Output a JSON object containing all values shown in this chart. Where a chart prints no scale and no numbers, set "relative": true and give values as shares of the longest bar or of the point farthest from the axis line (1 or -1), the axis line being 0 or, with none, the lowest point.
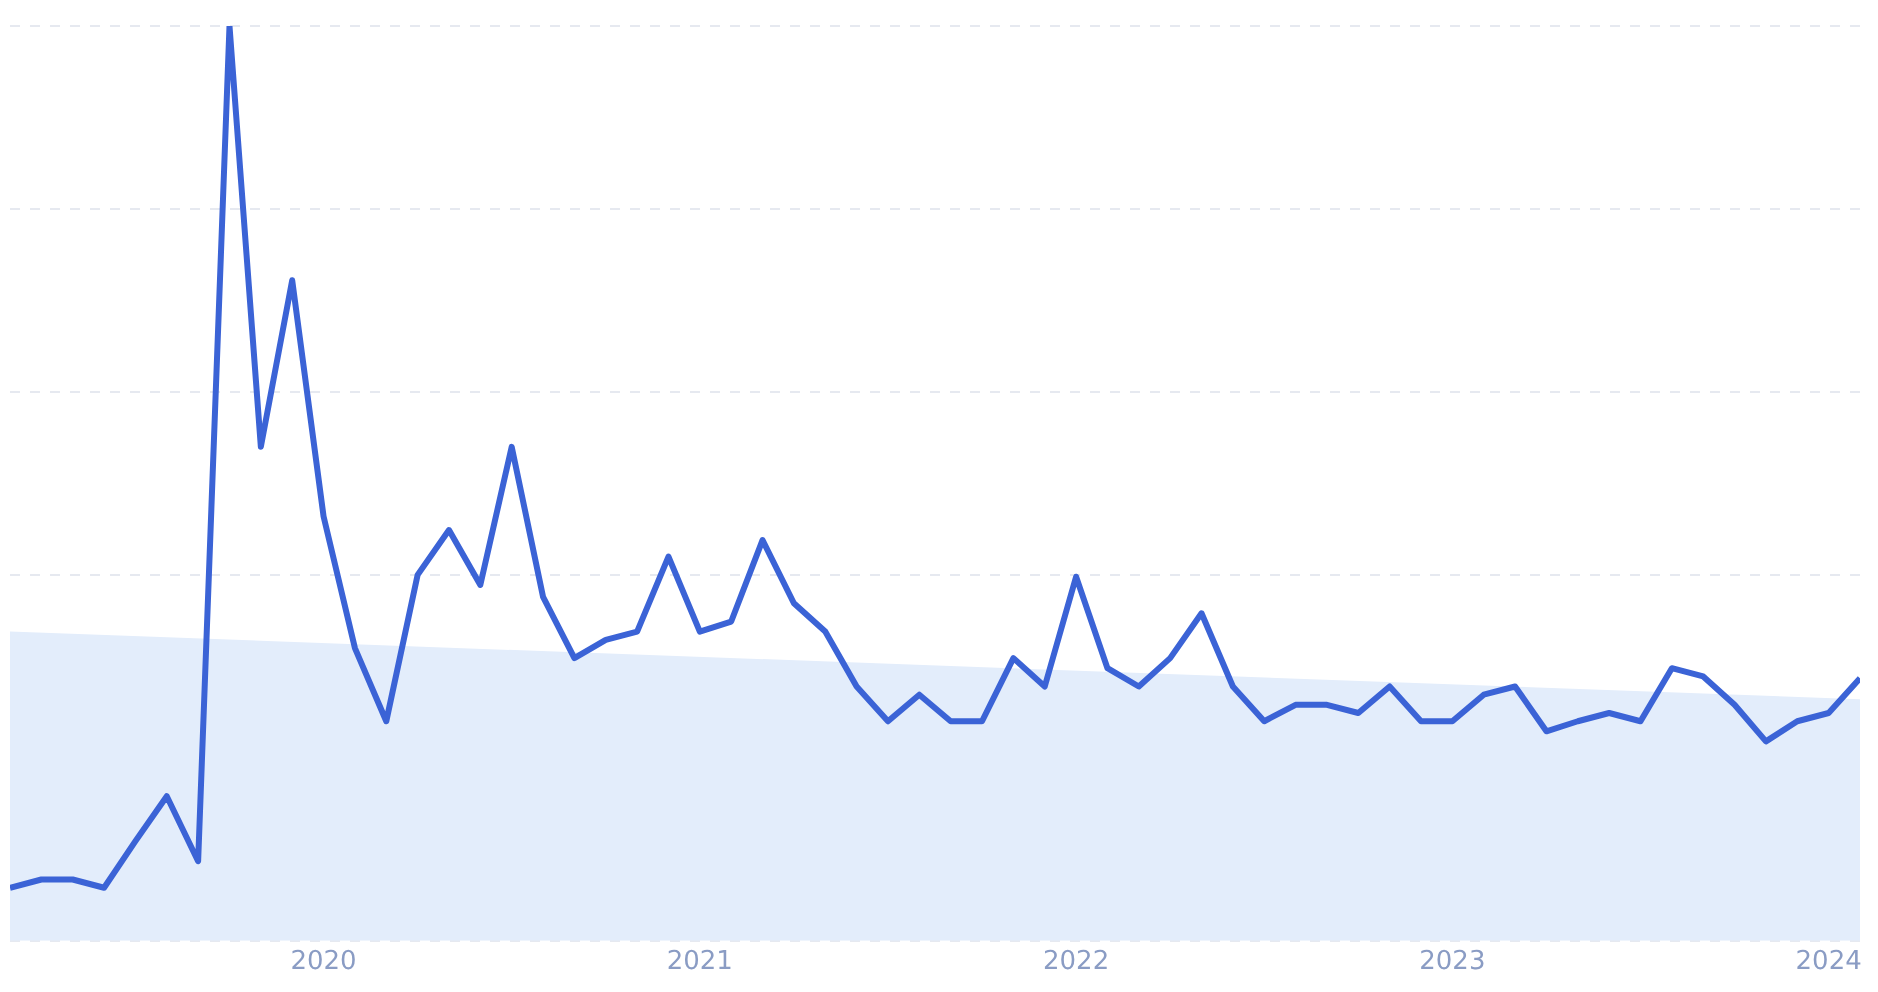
{
  "chart_data": {
    "type": "line",
    "relative": true,
    "grid": "y",
    "x": [
      "2019-03",
      "2019-04",
      "2019-05",
      "2019-06",
      "2019-07",
      "2019-08",
      "2019-09",
      "2019-10",
      "2019-11",
      "2019-12",
      "2020-01",
      "2020-02",
      "2020-03",
      "2020-04",
      "2020-05",
      "2020-06",
      "2020-07",
      "2020-08",
      "2020-09",
      "2020-10",
      "2020-11",
      "2020-12",
      "2021-01",
      "2021-02",
      "2021-03",
      "2021-04",
      "2021-05",
      "2021-06",
      "2021-07",
      "2021-08",
      "2021-09",
      "2021-10",
      "2021-11",
      "2021-12",
      "2022-01",
      "2022-02",
      "2022-03",
      "2022-04",
      "2022-05",
      "2022-06",
      "2022-07",
      "2022-08",
      "2022-09",
      "2022-10",
      "2022-11",
      "2022-12",
      "2023-01",
      "2023-02",
      "2023-03",
      "2023-04",
      "2023-05",
      "2023-06",
      "2023-07",
      "2023-08",
      "2023-09",
      "2023-10",
      "2023-11",
      "2023-12",
      "2024-01",
      "2024-02"
    ],
    "xlim": [
      "2019-03",
      "2024-02"
    ],
    "xticks": [
      "2020",
      "2021",
      "2022",
      "2023",
      "2024"
    ],
    "series": [
      {
        "type": "area",
        "color": "#e3edfb",
        "x": [
          "2019-03",
          "2024-02"
        ],
        "values": [
          0.338,
          0.264
        ]
      },
      {
        "color": "#3b63d6",
        "values": [
          0.058,
          0.067,
          0.067,
          0.058,
          0.109,
          0.158,
          0.087,
          1,
          0.54,
          0.722,
          0.464,
          0.32,
          0.24,
          0.4,
          0.449,
          0.389,
          0.54,
          0.376,
          0.309,
          0.329,
          0.338,
          0.42,
          0.338,
          0.349,
          0.438,
          0.369,
          0.338,
          0.278,
          0.24,
          0.269,
          0.24,
          0.24,
          0.309,
          0.278,
          0.398,
          0.298,
          0.278,
          0.309,
          0.358,
          0.278,
          0.24,
          0.258,
          0.258,
          0.249,
          0.278,
          0.24,
          0.24,
          0.269,
          0.278,
          0.229,
          0.24,
          0.249,
          0.24,
          0.298,
          0.289,
          0.258,
          0.218,
          0.24,
          0.249,
          0.287
        ]
      }
    ]
  }
}
